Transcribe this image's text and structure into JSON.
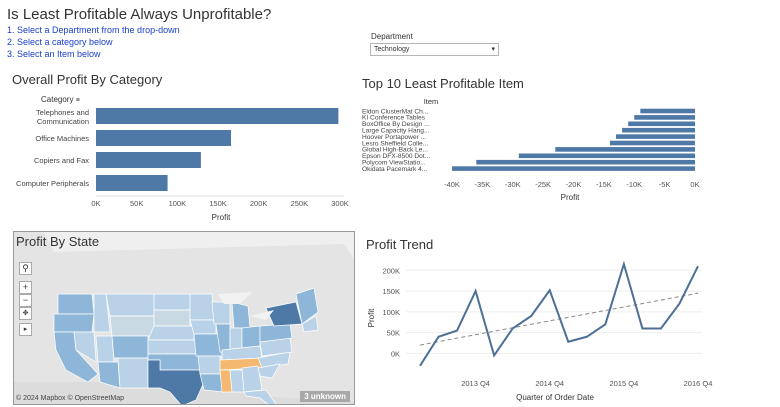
{
  "header": {
    "title": "Is Least Profitable Always Unprofitable?",
    "instructions": [
      "1. Select a Department from the drop-down",
      "2. Select a category below",
      "3. Select an Item below"
    ]
  },
  "department_filter": {
    "label": "Department",
    "selected": "Technology"
  },
  "colors": {
    "bar": "#4e79a7",
    "map_light": "#b9d2e7",
    "map_mid": "#8db6d8",
    "map_dark": "#4e79a7",
    "map_orange": "#f4b870",
    "trend_line": "#4e6f96",
    "trend_dashed": "#888888"
  },
  "chart_data": [
    {
      "type": "bar",
      "title": "Overall Profit By Category",
      "ylabel": "Category",
      "xlabel": "Profit",
      "categories": [
        "Telephones and Communication",
        "Office Machines",
        "Copiers and Fax",
        "Computer Peripherals"
      ],
      "values": [
        298000,
        166000,
        129000,
        88000
      ],
      "xlim": [
        0,
        300000
      ],
      "xticks": [
        "0K",
        "50K",
        "100K",
        "150K",
        "200K",
        "250K",
        "300K"
      ]
    },
    {
      "type": "bar",
      "title": "Top 10 Least Profitable Item",
      "ylabel": "Item",
      "xlabel": "Profit",
      "categories": [
        "Eldon ClusterMat Ch...",
        "KI Conference Tables",
        "BoxOffice By Design ...",
        "Large Capacity Hang...",
        "Hoover Portapower ...",
        "Lesro Sheffield Colle...",
        "Global High-Back Le...",
        "Epson DFX-8500 Dot...",
        "Polycom ViewStatio...",
        "Okidata Pacemark 4..."
      ],
      "values": [
        -9000,
        -10000,
        -11000,
        -12000,
        -13000,
        -14000,
        -23000,
        -29000,
        -36000,
        -40000
      ],
      "xlim": [
        -40000,
        0
      ],
      "xticks": [
        "-40K",
        "-35K",
        "-30K",
        "-25K",
        "-20K",
        "-15K",
        "-10K",
        "-5K",
        "0K"
      ]
    },
    {
      "type": "line",
      "title": "Profit Trend",
      "ylabel": "Profit",
      "xlabel": "Quarter of Order Date",
      "yticks": [
        "0K",
        "50K",
        "100K",
        "150K",
        "200K"
      ],
      "ylim": [
        -40000,
        220000
      ],
      "xticks": [
        "2013 Q4",
        "2014 Q4",
        "2015 Q4",
        "2016 Q4"
      ],
      "x": [
        "2013 Q1",
        "2013 Q2",
        "2013 Q3",
        "2013 Q4",
        "2014 Q1",
        "2014 Q2",
        "2014 Q3",
        "2014 Q4",
        "2015 Q1",
        "2015 Q2",
        "2015 Q3",
        "2015 Q4",
        "2016 Q1",
        "2016 Q2",
        "2016 Q3",
        "2016 Q4"
      ],
      "values": [
        -30000,
        40000,
        55000,
        150000,
        -5000,
        60000,
        90000,
        152000,
        28000,
        40000,
        70000,
        215000,
        60000,
        60000,
        120000,
        210000
      ],
      "trend": [
        20000,
        145000
      ]
    }
  ],
  "map": {
    "title": "Profit By State",
    "controls": [
      "search-icon",
      "zoom-in-icon",
      "zoom-out-icon",
      "pan-icon",
      "expand-icon"
    ],
    "attribution": "© 2024 Mapbox © OpenStreetMap",
    "unknown_badge": "3 unknown"
  }
}
